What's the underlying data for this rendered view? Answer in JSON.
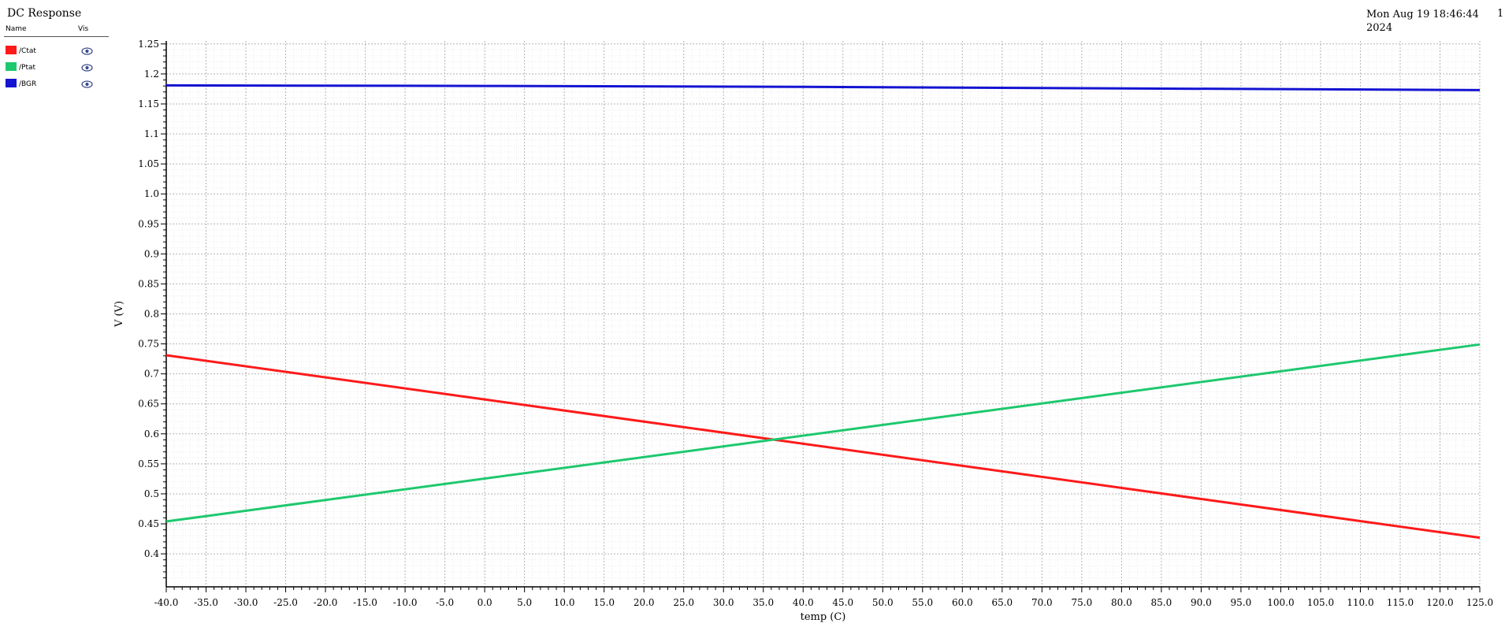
{
  "window": {
    "title": "DC Response",
    "timestamp_line1": "Mon Aug 19 18:46:44",
    "timestamp_line2": "2024",
    "page_number": "1"
  },
  "legend": {
    "header_name": "Name",
    "header_vis": "Vis",
    "items": [
      {
        "label": "/Ctat",
        "color": "#ff1a1a",
        "icon": "eye-icon"
      },
      {
        "label": "/Ptat",
        "color": "#1ec86e",
        "icon": "eye-icon"
      },
      {
        "label": "/BGR",
        "color": "#1414d2",
        "icon": "eye-icon"
      }
    ]
  },
  "chart_data": {
    "type": "line",
    "xlabel": "temp (C)",
    "ylabel": "V (V)",
    "xlim": [
      -40.0,
      125.0
    ],
    "ylim": [
      0.345,
      1.255
    ],
    "x_ticks": [
      "-40.0",
      "-35.0",
      "-30.0",
      "-25.0",
      "-20.0",
      "-15.0",
      "-10.0",
      "-5.0",
      "0.0",
      "5.0",
      "10.0",
      "15.0",
      "20.0",
      "25.0",
      "30.0",
      "35.0",
      "40.0",
      "45.0",
      "50.0",
      "55.0",
      "60.0",
      "65.0",
      "70.0",
      "75.0",
      "80.0",
      "85.0",
      "90.0",
      "95.0",
      "100.0",
      "105.0",
      "110.0",
      "115.0",
      "120.0",
      "125.0"
    ],
    "y_ticks": [
      "0.4",
      "0.45",
      "0.5",
      "0.55",
      "0.6",
      "0.65",
      "0.7",
      "0.75",
      "0.8",
      "0.85",
      "0.9",
      "0.95",
      "1.0",
      "1.05",
      "1.1",
      "1.15",
      "1.2",
      "1.25"
    ],
    "grid": true,
    "series": [
      {
        "name": "/Ctat",
        "color": "#ff1a1a",
        "x": [
          -40,
          125
        ],
        "y": [
          0.731,
          0.427
        ]
      },
      {
        "name": "/Ptat",
        "color": "#1ec86e",
        "x": [
          -40,
          125
        ],
        "y": [
          0.454,
          0.749
        ]
      },
      {
        "name": "/BGR",
        "color": "#1414d2",
        "x": [
          -40,
          0,
          40,
          80,
          125
        ],
        "y": [
          1.181,
          1.18,
          1.1785,
          1.176,
          1.173
        ]
      }
    ]
  }
}
